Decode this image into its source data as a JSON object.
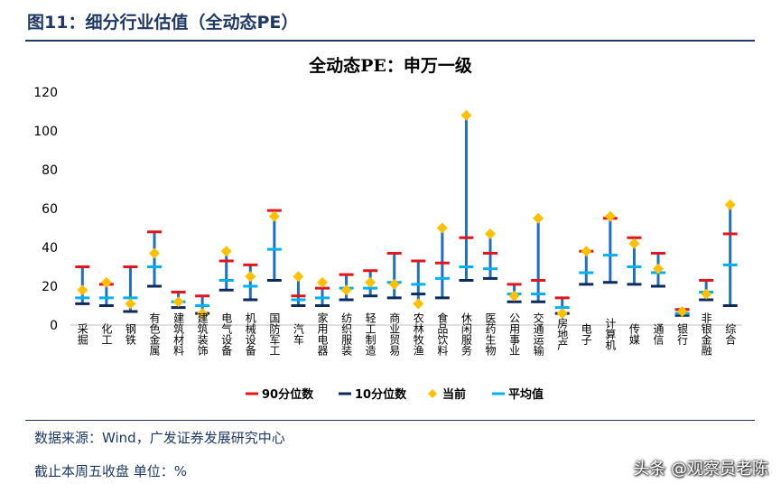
{
  "header": {
    "title": "图11：细分行业估值（全动态PE）"
  },
  "footer": {
    "source": "数据来源：Wind，广发证券发展研究中心",
    "note": "截止本周五收盘  单位：%",
    "watermark": "头条 @观察员老陈"
  },
  "colors": {
    "header_text": "#1f3864",
    "p90": "#e5141b",
    "p10": "#0e2a5c",
    "current": "#ffc000",
    "average": "#00b0f0",
    "range_bar": "#1f6fbf"
  },
  "chart_data": {
    "type": "range-marker",
    "title": "全动态PE：申万一级",
    "ylim": [
      0,
      120
    ],
    "yticks": [
      "0",
      "20",
      "40",
      "60",
      "80",
      "100",
      "120"
    ],
    "grid": false,
    "legend_position": "bottom",
    "categories": [
      "采掘",
      "化工",
      "钢铁",
      "有色金属",
      "建筑材料",
      "建筑装饰",
      "电气设备",
      "机械设备",
      "国防军工",
      "汽车",
      "家用电器",
      "纺织服装",
      "轻工制造",
      "商业贸易",
      "农林牧渔",
      "食品饮料",
      "休闲服务",
      "医药生物",
      "公用事业",
      "交通运输",
      "房地产",
      "电子",
      "计算机",
      "传媒",
      "通信",
      "银行",
      "非银金融",
      "综合"
    ],
    "series": [
      {
        "name": "90分位数",
        "values": [
          30,
          21,
          30,
          48,
          17,
          15,
          33,
          31,
          59,
          15,
          19,
          26,
          28,
          37,
          33,
          32,
          45,
          37,
          21,
          23,
          14,
          38,
          55,
          45,
          37,
          8,
          23,
          47
        ]
      },
      {
        "name": "10分位数",
        "values": [
          11,
          10,
          7,
          20,
          9,
          6,
          18,
          13,
          23,
          10,
          10,
          13,
          15,
          14,
          16,
          14,
          23,
          24,
          12,
          12,
          6,
          21,
          22,
          21,
          20,
          5,
          13,
          10
        ]
      },
      {
        "name": "当前",
        "values": [
          18,
          22,
          11,
          37,
          12,
          6,
          38,
          25,
          56,
          25,
          22,
          18,
          22,
          21,
          11,
          50,
          108,
          47,
          15,
          55,
          6,
          38,
          56,
          42,
          29,
          7,
          16,
          62
        ]
      },
      {
        "name": "平均值",
        "values": [
          14,
          14,
          14,
          30,
          12,
          10,
          23,
          20,
          39,
          13,
          14,
          19,
          19,
          22,
          21,
          24,
          30,
          29,
          16,
          16,
          9,
          27,
          36,
          30,
          27,
          6,
          17,
          31
        ]
      }
    ]
  }
}
